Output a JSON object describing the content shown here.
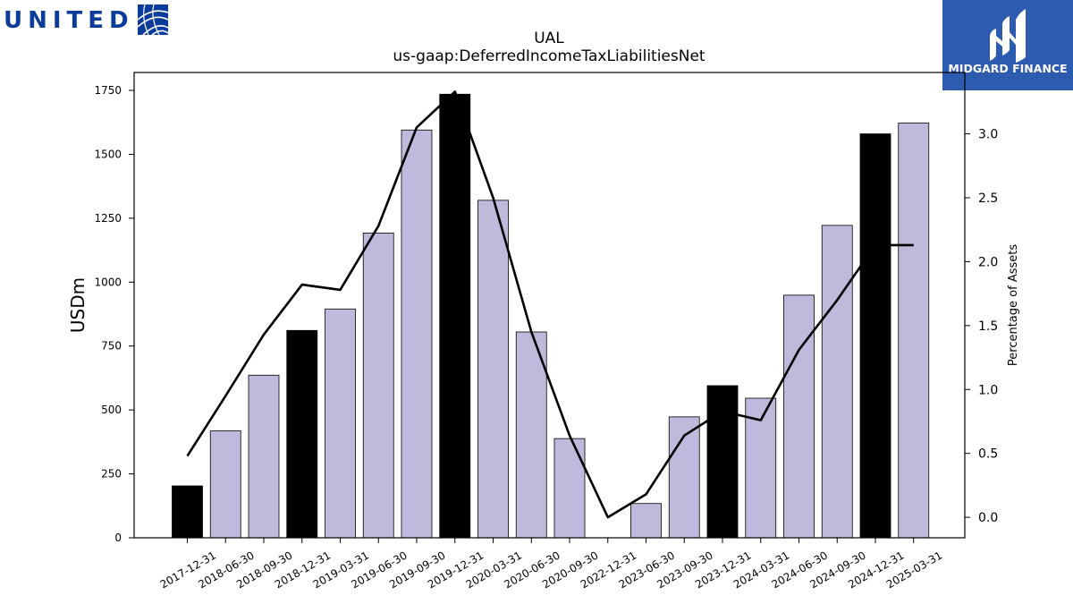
{
  "logos": {
    "left_text": "UNITED",
    "right_text": "MIDGARD FINANCE",
    "left_color": "#0b3c9a",
    "right_bg": "#2d5bb0"
  },
  "colors": {
    "highlight_bar": "#000000",
    "normal_bar": "#bdbadb",
    "line": "#000000"
  },
  "chart_data": {
    "type": "bar",
    "title": "UAL",
    "subtitle": "us-gaap:DeferredIncomeTaxLiabilitiesNet",
    "ylabel": "USDm",
    "y2label": "Percentage of Assets",
    "ylim": [
      0,
      1820
    ],
    "y2lim": [
      -0.16,
      3.48
    ],
    "yticks": [
      0,
      250,
      500,
      750,
      1000,
      1250,
      1500,
      1750
    ],
    "y2ticks": [
      "0.0",
      "0.5",
      "1.0",
      "1.5",
      "2.0",
      "2.5",
      "3.0"
    ],
    "categories": [
      "2017-12-31",
      "2018-06-30",
      "2018-09-30",
      "2018-12-31",
      "2019-03-31",
      "2019-06-30",
      "2019-09-30",
      "2019-12-31",
      "2020-03-31",
      "2020-06-30",
      "2020-09-30",
      "2022-12-31",
      "2023-06-30",
      "2023-09-30",
      "2023-12-31",
      "2024-03-31",
      "2024-06-30",
      "2024-09-30",
      "2024-12-31",
      "2025-03-31"
    ],
    "series": [
      {
        "type": "bar",
        "values": [
          203,
          418,
          636,
          811,
          895,
          1192,
          1595,
          1735,
          1320,
          805,
          388,
          0,
          134,
          473,
          595,
          546,
          949,
          1222,
          1580,
          1622
        ],
        "highlight": [
          true,
          false,
          false,
          true,
          false,
          false,
          false,
          true,
          false,
          false,
          false,
          false,
          false,
          false,
          true,
          false,
          false,
          false,
          true,
          false
        ]
      },
      {
        "type": "line",
        "axis": "right",
        "values": [
          0.48,
          0.95,
          1.43,
          1.82,
          1.78,
          2.28,
          3.05,
          3.33,
          2.5,
          1.45,
          0.64,
          0.0,
          0.18,
          0.64,
          0.83,
          0.76,
          1.31,
          1.7,
          2.13,
          2.13
        ]
      }
    ],
    "grid": false,
    "legend": "none"
  }
}
